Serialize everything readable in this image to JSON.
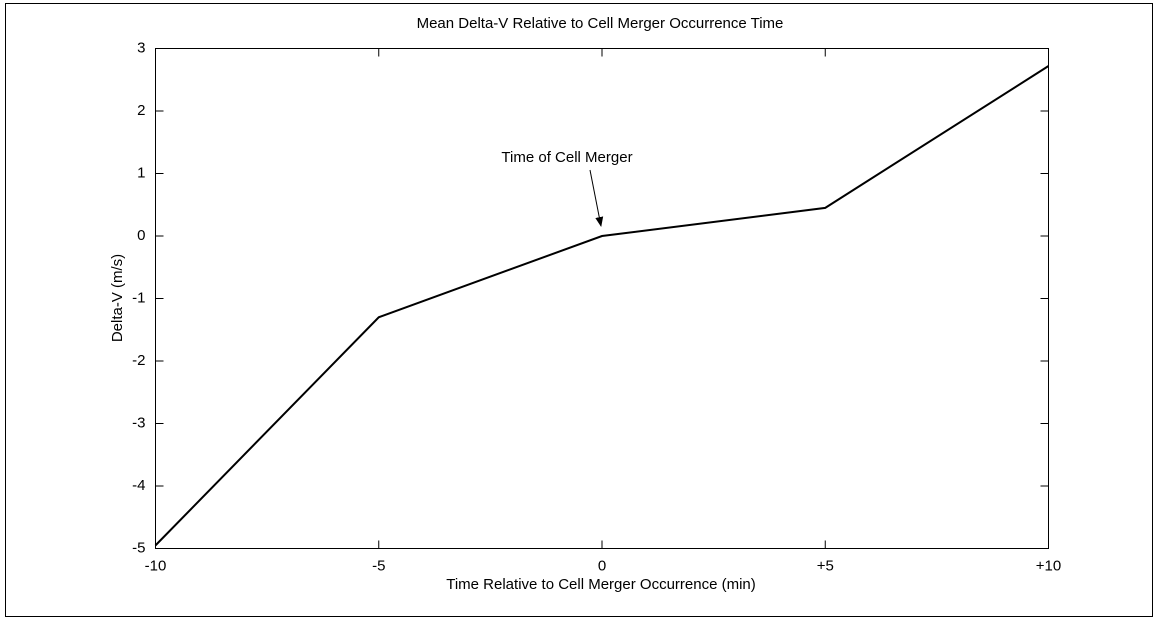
{
  "chart_data": {
    "type": "line",
    "title": "Mean Delta-V Relative to Cell Merger Occurrence Time",
    "x_label": "Time Relative to Cell Merger Occurrence (min)",
    "y_label": "Delta-V (m/s)",
    "annotation": "Time of Cell Merger",
    "x": [
      -10,
      -5,
      0,
      5,
      10
    ],
    "series": [
      {
        "color": "#000000",
        "values": [
          -4.95,
          -1.3,
          0,
          0.45,
          2.72
        ]
      }
    ],
    "xlim": [
      -10,
      10
    ],
    "xticks": [
      -10,
      -5,
      0,
      {
        "value": 5,
        "label": "+5"
      },
      {
        "value": 10,
        "label": "+10"
      }
    ],
    "ylim": [
      -5,
      3
    ],
    "yticks": [
      -5,
      -4,
      -3,
      -2,
      -1,
      0,
      1,
      2,
      3
    ],
    "grid": false
  }
}
